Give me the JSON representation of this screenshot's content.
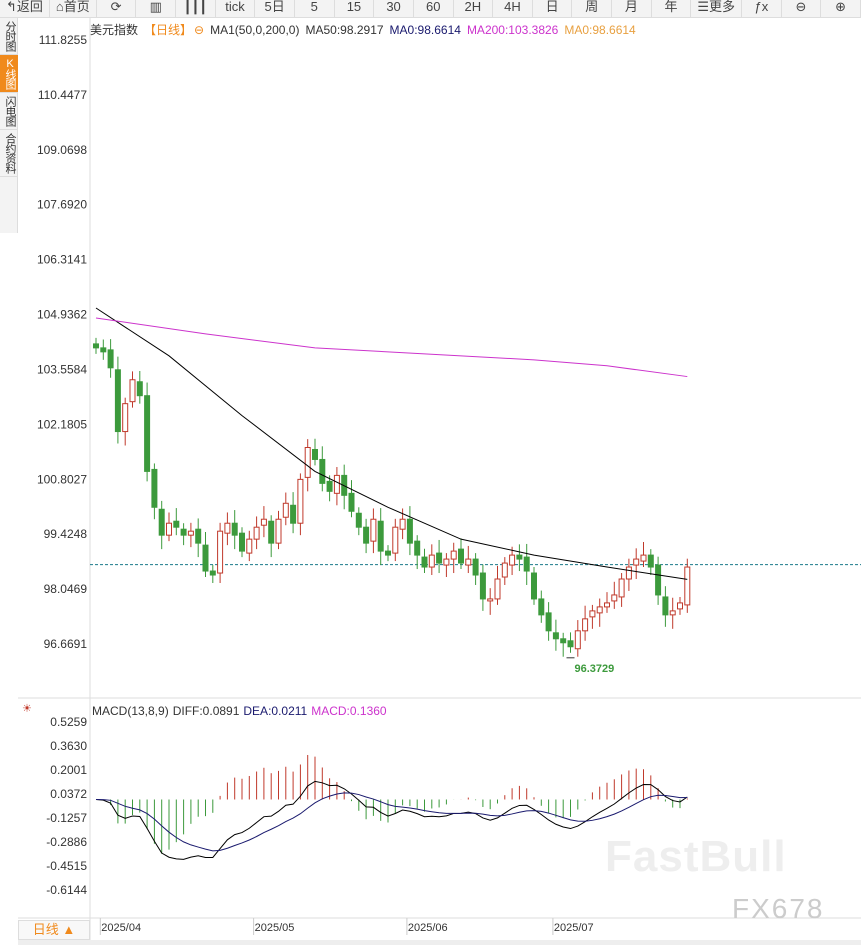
{
  "toolbar": [
    {
      "name": "back",
      "label": "↰返回"
    },
    {
      "name": "home",
      "label": "⌂首页"
    },
    {
      "name": "refresh",
      "label": "⟳"
    },
    {
      "name": "indicator",
      "label": "▥"
    },
    {
      "name": "candle-type",
      "label": "┃┃┃"
    },
    {
      "name": "tick",
      "label": "tick"
    },
    {
      "name": "5day",
      "label": "5日"
    },
    {
      "name": "5",
      "label": "5"
    },
    {
      "name": "15",
      "label": "15"
    },
    {
      "name": "30",
      "label": "30"
    },
    {
      "name": "60",
      "label": "60"
    },
    {
      "name": "2h",
      "label": "2H"
    },
    {
      "name": "4h",
      "label": "4H"
    },
    {
      "name": "day",
      "label": "日"
    },
    {
      "name": "week",
      "label": "周"
    },
    {
      "name": "month",
      "label": "月"
    },
    {
      "name": "year",
      "label": "年"
    },
    {
      "name": "more",
      "label": "☰更多"
    },
    {
      "name": "fx",
      "label": "ƒx"
    },
    {
      "name": "zoom-out",
      "label": "⊖"
    },
    {
      "name": "zoom-in",
      "label": "⊕"
    }
  ],
  "left_tabs": [
    "分时图",
    "K线图",
    "闪电图",
    "合约资料"
  ],
  "legend": {
    "name": "美元指数",
    "period": "【日线】",
    "lock": "⊖",
    "ma_set": "MA1(50,0,200,0)",
    "ma50": "MA50:98.2917",
    "ma0a": "MA0:98.6614",
    "ma200": "MA200:103.3826",
    "ma0b": "MA0:98.6614"
  },
  "macd_legend": {
    "title": "MACD(13,8,9)",
    "diff": "DIFF:0.0891",
    "dea": "DEA:0.0211",
    "macd": "MACD:0.1360"
  },
  "period_button": "日线 ▲",
  "watermarks": [
    "FastBull",
    "FX678"
  ],
  "colors": {
    "up": "#c0392b",
    "down": "#3c9a3c",
    "ma50": "#000000",
    "ma200": "#cc33cc",
    "dea": "#1a1a6e",
    "current": "#1a7a8a"
  },
  "chart_data": {
    "type": "candlestick",
    "y_ticks": [
      "111.8255",
      "110.4477",
      "109.0698",
      "107.6920",
      "106.3141",
      "104.9362",
      "103.5584",
      "102.1805",
      "100.8027",
      "99.4248",
      "98.0469",
      "96.6691"
    ],
    "ylim": [
      96.6691,
      111.8255
    ],
    "x_labels": [
      "2025/04",
      "2025/05",
      "2025/06",
      "2025/07"
    ],
    "x_label_index": [
      1,
      22,
      43,
      63
    ],
    "closes": [
      104.1,
      104.0,
      103.6,
      102.0,
      102.7,
      103.3,
      102.9,
      101.0,
      100.1,
      99.4,
      99.7,
      99.6,
      99.4,
      99.5,
      99.2,
      98.5,
      98.4,
      99.5,
      99.7,
      99.4,
      99.0,
      99.3,
      99.6,
      99.8,
      99.2,
      99.8,
      100.2,
      99.7,
      100.8,
      101.6,
      101.3,
      100.7,
      100.5,
      100.9,
      100.4,
      100.0,
      99.6,
      99.2,
      99.8,
      99.0,
      98.9,
      99.6,
      99.8,
      99.2,
      98.9,
      98.6,
      98.9,
      98.7,
      98.8,
      99.0,
      98.7,
      98.8,
      98.4,
      97.8,
      97.8,
      98.3,
      98.7,
      98.9,
      98.8,
      98.5,
      97.8,
      97.4,
      97.0,
      96.8,
      96.7,
      96.6,
      97.0,
      97.3,
      97.5,
      97.6,
      97.7,
      97.9,
      98.3,
      98.6,
      98.8,
      98.9,
      98.6,
      97.9,
      97.4,
      97.5,
      97.7,
      98.6
    ],
    "low_label": "96.3729",
    "low_value": 96.3729,
    "current_value": 98.6614,
    "ma50": [
      [
        0,
        105.1
      ],
      [
        10,
        103.9
      ],
      [
        20,
        102.4
      ],
      [
        30,
        101.0
      ],
      [
        40,
        100.1
      ],
      [
        50,
        99.3
      ],
      [
        60,
        98.9
      ],
      [
        70,
        98.6
      ],
      [
        81,
        98.29
      ]
    ],
    "ma200": [
      [
        0,
        104.85
      ],
      [
        15,
        104.45
      ],
      [
        30,
        104.1
      ],
      [
        45,
        103.95
      ],
      [
        60,
        103.8
      ],
      [
        70,
        103.65
      ],
      [
        81,
        103.38
      ]
    ],
    "macd_ylim": [
      -0.6144,
      0.5259
    ],
    "macd_ticks": [
      "0.5259",
      "0.3630",
      "0.2001",
      "0.0372",
      "-0.1257",
      "-0.2886",
      "-0.4515",
      "-0.6144"
    ]
  }
}
